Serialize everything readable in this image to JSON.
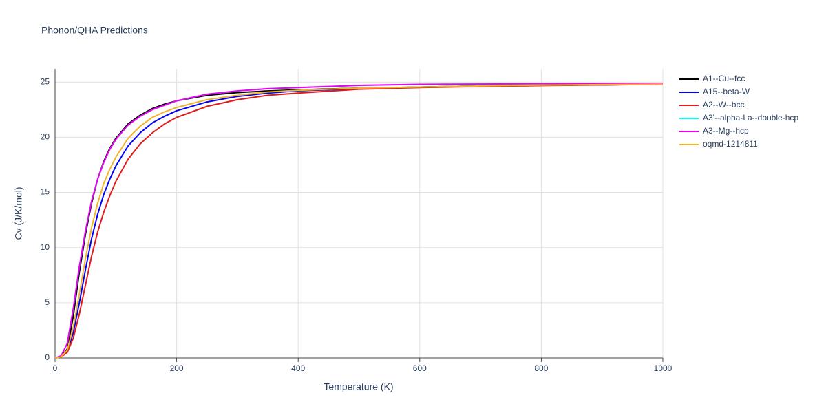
{
  "chart_data": {
    "type": "line",
    "title": "Phonon/QHA Predictions",
    "x_label": "Temperature (K)",
    "y_label": "Cv (J/K/mol)",
    "x": [
      0,
      10,
      20,
      30,
      40,
      50,
      60,
      70,
      80,
      90,
      100,
      120,
      140,
      160,
      180,
      200,
      250,
      300,
      350,
      400,
      500,
      600,
      700,
      800,
      900,
      1000
    ],
    "series": [
      {
        "name": "A1--Cu--fcc",
        "color": "#000000",
        "values": [
          0,
          0.1,
          0.8,
          3.8,
          7.8,
          11.2,
          14.0,
          16.2,
          17.8,
          19.0,
          19.9,
          21.2,
          22.0,
          22.6,
          23.0,
          23.3,
          23.8,
          24.05,
          24.2,
          24.3,
          24.45,
          24.55,
          24.65,
          24.7,
          24.75,
          24.8
        ]
      },
      {
        "name": "A15--beta-W",
        "color": "#0000ff",
        "values": [
          0,
          0.1,
          0.6,
          2.3,
          5.0,
          8.0,
          10.8,
          13.0,
          14.8,
          16.2,
          17.4,
          19.2,
          20.4,
          21.3,
          21.9,
          22.4,
          23.2,
          23.7,
          24.0,
          24.2,
          24.4,
          24.55,
          24.65,
          24.7,
          24.75,
          24.8
        ]
      },
      {
        "name": "A2--W--bcc",
        "color": "#e31a1c",
        "values": [
          0,
          0.1,
          0.5,
          1.8,
          4.0,
          6.6,
          9.2,
          11.4,
          13.2,
          14.7,
          16.0,
          18.0,
          19.4,
          20.4,
          21.2,
          21.8,
          22.8,
          23.4,
          23.8,
          24.0,
          24.35,
          24.5,
          24.6,
          24.68,
          24.74,
          24.8
        ]
      },
      {
        "name": "A3'--alpha-La--double-hcp",
        "color": "#00ffff",
        "values": [
          0,
          0.2,
          1.3,
          4.5,
          8.3,
          11.5,
          14.2,
          16.2,
          17.7,
          18.9,
          19.8,
          21.1,
          21.9,
          22.5,
          22.9,
          23.3,
          23.9,
          24.2,
          24.4,
          24.5,
          24.7,
          24.8,
          24.82,
          24.85,
          24.87,
          24.88
        ]
      },
      {
        "name": "A3--Mg--hcp",
        "color": "#ee00ee",
        "values": [
          0,
          0.2,
          1.3,
          4.5,
          8.3,
          11.5,
          14.2,
          16.2,
          17.7,
          18.9,
          19.8,
          21.1,
          21.9,
          22.5,
          22.9,
          23.3,
          23.9,
          24.2,
          24.4,
          24.5,
          24.7,
          24.8,
          24.82,
          24.85,
          24.87,
          24.88
        ]
      },
      {
        "name": "oqmd-1214811",
        "color": "#f0b428",
        "values": [
          0,
          0.1,
          0.7,
          2.8,
          5.8,
          9.0,
          11.8,
          14.0,
          15.8,
          17.1,
          18.2,
          19.9,
          21.0,
          21.8,
          22.3,
          22.7,
          23.4,
          23.8,
          24.1,
          24.25,
          24.45,
          24.55,
          24.65,
          24.72,
          24.77,
          24.82
        ]
      }
    ],
    "xlim": [
      0,
      1000
    ],
    "xticks": [
      0,
      200,
      400,
      600,
      800,
      1000
    ],
    "ylim": [
      0,
      26.2
    ],
    "yticks": [
      0,
      5,
      10,
      15,
      20,
      25
    ],
    "grid": true
  }
}
